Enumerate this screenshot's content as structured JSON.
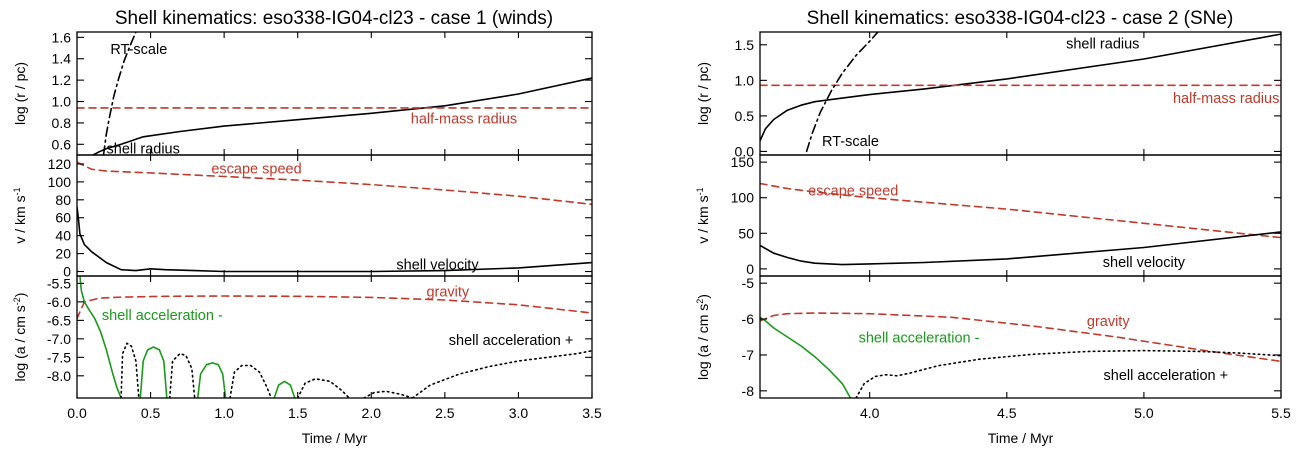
{
  "figure": {
    "colors": {
      "axes": "#000000",
      "shell": "#000000",
      "reference": "#c0392b",
      "negative_acc": "#1a9a1a"
    }
  },
  "chart_data": [
    {
      "type": "line",
      "title": "Shell kinematics: eso338-IG04-cl23 - case 1 (winds)",
      "xlabel": "Time / Myr",
      "xlim": [
        0.0,
        3.5
      ],
      "xticks": [
        0.0,
        0.5,
        1.0,
        1.5,
        2.0,
        2.5,
        3.0,
        3.5
      ],
      "xtick_labels": [
        "0.0",
        "0.5",
        "1.0",
        "1.5",
        "2.0",
        "2.5",
        "3.0",
        "3.5"
      ],
      "panels": [
        {
          "ylabel": "log (r / pc)",
          "ylim": [
            0.5,
            1.65
          ],
          "yticks": [
            0.6,
            0.8,
            1.0,
            1.2,
            1.4,
            1.6
          ],
          "ytick_labels": [
            "0.6",
            "0.8",
            "1.0",
            "1.2",
            "1.4",
            "1.6"
          ],
          "series": [
            {
              "style": "solid",
              "color": "#000000",
              "x": [
                0.11,
                0.15,
                0.2,
                0.3,
                0.45,
                0.7,
                1.0,
                1.5,
                2.0,
                2.5,
                3.0,
                3.5
              ],
              "y": [
                0.5,
                0.53,
                0.56,
                0.6,
                0.67,
                0.72,
                0.77,
                0.83,
                0.89,
                0.96,
                1.07,
                1.22
              ]
            },
            {
              "style": "dashed",
              "color": "#c0392b",
              "x": [
                0.0,
                3.5
              ],
              "y": [
                0.94,
                0.94
              ]
            },
            {
              "style": "dashdot",
              "color": "#000000",
              "x": [
                0.18,
                0.2,
                0.22,
                0.25,
                0.28,
                0.32,
                0.36,
                0.4
              ],
              "y": [
                0.5,
                0.7,
                0.85,
                1.05,
                1.2,
                1.38,
                1.52,
                1.65
              ]
            }
          ],
          "annotations": [
            {
              "text": "RT-scale",
              "x": 0.42,
              "y": 1.49,
              "color": "#000000"
            },
            {
              "text": "half-mass radius",
              "x": 2.63,
              "y": 0.84,
              "color": "#c0392b"
            },
            {
              "text": "shell radius",
              "x": 0.45,
              "y": 0.56,
              "color": "#000000"
            }
          ]
        },
        {
          "ylabel": "v / km s-1",
          "ylim": [
            -5,
            130
          ],
          "yticks": [
            0,
            20,
            40,
            60,
            80,
            100,
            120
          ],
          "ytick_labels": [
            "0",
            "20",
            "40",
            "60",
            "80",
            "100",
            "120"
          ],
          "series": [
            {
              "style": "dashed",
              "color": "#c0392b",
              "x": [
                0.0,
                0.05,
                0.1,
                0.2,
                0.5,
                1.0,
                1.5,
                2.0,
                2.5,
                3.0,
                3.5
              ],
              "y": [
                122,
                118,
                114,
                112,
                110,
                106,
                102,
                97,
                91,
                84,
                75
              ]
            },
            {
              "style": "solid",
              "color": "#000000",
              "x": [
                0.0,
                0.01,
                0.02,
                0.05,
                0.1,
                0.2,
                0.3,
                0.4,
                0.5,
                0.6,
                0.8,
                1.0,
                1.5,
                2.0,
                2.5,
                3.0,
                3.5
              ],
              "y": [
                72,
                58,
                42,
                30,
                22,
                10,
                2,
                1,
                3,
                2,
                1,
                0,
                0,
                0,
                1,
                4,
                10
              ]
            }
          ],
          "annotations": [
            {
              "text": "escape speed",
              "x": 1.22,
              "y": 115,
              "color": "#c0392b"
            },
            {
              "text": "shell velocity",
              "x": 2.45,
              "y": 8,
              "color": "#000000"
            }
          ]
        },
        {
          "ylabel": "log (a / cm s-2)",
          "ylim": [
            -8.6,
            -5.3
          ],
          "yticks": [
            -5.5,
            -6.0,
            -6.5,
            -7.0,
            -7.5,
            -8.0
          ],
          "ytick_labels": [
            "-5.5",
            "-6.0",
            "-6.5",
            "-7.0",
            "-7.5",
            "-8.0"
          ],
          "series": [
            {
              "style": "dashed",
              "color": "#c0392b",
              "x": [
                0.0,
                0.05,
                0.15,
                0.3,
                0.6,
                1.0,
                1.5,
                2.0,
                2.5,
                3.0,
                3.5
              ],
              "y": [
                -6.45,
                -6.0,
                -5.9,
                -5.87,
                -5.85,
                -5.84,
                -5.85,
                -5.88,
                -5.95,
                -6.08,
                -6.3
              ]
            },
            {
              "style": "solid",
              "color": "#1a9a1a",
              "x": [
                0.02,
                0.03,
                0.05,
                0.08,
                0.12,
                0.16,
                0.2,
                0.24,
                0.27,
                0.3
              ],
              "y": [
                -5.3,
                -5.7,
                -6.0,
                -6.2,
                -6.45,
                -6.8,
                -7.3,
                -7.9,
                -8.3,
                -8.6
              ]
            },
            {
              "style": "solid",
              "color": "#1a9a1a",
              "x": [
                0.43,
                0.45,
                0.48,
                0.52,
                0.56,
                0.59,
                0.61
              ],
              "y": [
                -8.6,
                -7.6,
                -7.3,
                -7.22,
                -7.3,
                -7.6,
                -8.6
              ]
            },
            {
              "style": "solid",
              "color": "#1a9a1a",
              "x": [
                0.82,
                0.84,
                0.88,
                0.92,
                0.96,
                0.99,
                1.01
              ],
              "y": [
                -8.6,
                -7.95,
                -7.7,
                -7.65,
                -7.7,
                -7.95,
                -8.6
              ]
            },
            {
              "style": "solid",
              "color": "#1a9a1a",
              "x": [
                1.34,
                1.37,
                1.41,
                1.45,
                1.48
              ],
              "y": [
                -8.6,
                -8.25,
                -8.15,
                -8.25,
                -8.6
              ]
            },
            {
              "style": "dotted",
              "color": "#000000",
              "x": [
                0.3,
                0.31,
                0.34,
                0.37,
                0.4,
                0.42
              ],
              "y": [
                -8.6,
                -7.4,
                -7.12,
                -7.2,
                -7.6,
                -8.6
              ]
            },
            {
              "style": "dotted",
              "color": "#000000",
              "x": [
                0.63,
                0.65,
                0.7,
                0.74,
                0.78,
                0.8
              ],
              "y": [
                -8.6,
                -7.6,
                -7.4,
                -7.45,
                -7.8,
                -8.6
              ]
            },
            {
              "style": "dotted",
              "color": "#000000",
              "x": [
                1.04,
                1.07,
                1.12,
                1.18,
                1.24,
                1.29,
                1.32
              ],
              "y": [
                -8.6,
                -7.9,
                -7.72,
                -7.72,
                -7.9,
                -8.3,
                -8.6
              ]
            },
            {
              "style": "dotted",
              "color": "#000000",
              "x": [
                1.5,
                1.55,
                1.62,
                1.72,
                1.8,
                1.85
              ],
              "y": [
                -8.6,
                -8.2,
                -8.08,
                -8.15,
                -8.4,
                -8.6
              ]
            },
            {
              "style": "dotted",
              "color": "#000000",
              "x": [
                1.95,
                2.02,
                2.1,
                2.2,
                2.28
              ],
              "y": [
                -8.6,
                -8.45,
                -8.42,
                -8.5,
                -8.6
              ]
            },
            {
              "style": "dotted",
              "color": "#000000",
              "x": [
                2.28,
                2.4,
                2.6,
                2.8,
                3.0,
                3.2,
                3.4,
                3.5
              ],
              "y": [
                -8.6,
                -8.25,
                -7.95,
                -7.75,
                -7.6,
                -7.5,
                -7.4,
                -7.32
              ]
            }
          ],
          "annotations": [
            {
              "text": "gravity",
              "x": 2.52,
              "y": -5.72,
              "color": "#c0392b"
            },
            {
              "text": "shell acceleration -",
              "x": 0.58,
              "y": -6.36,
              "color": "#1a9a1a"
            },
            {
              "text": "shell acceleration +",
              "x": 2.95,
              "y": -7.03,
              "color": "#000000"
            }
          ]
        }
      ]
    },
    {
      "type": "line",
      "title": "Shell kinematics: eso338-IG04-cl23 - case 2 (SNe)",
      "xlabel": "Time / Myr",
      "xlim": [
        3.6,
        5.5
      ],
      "xticks": [
        4.0,
        4.5,
        5.0,
        5.5
      ],
      "xtick_labels": [
        "4.0",
        "4.5",
        "5.0",
        "5.5"
      ],
      "panels": [
        {
          "ylabel": "log (r / pc)",
          "ylim": [
            -0.05,
            1.68
          ],
          "yticks": [
            0.0,
            0.5,
            1.0,
            1.5
          ],
          "ytick_labels": [
            "0.0",
            "0.5",
            "1.0",
            "1.5"
          ],
          "series": [
            {
              "style": "solid",
              "color": "#000000",
              "x": [
                3.6,
                3.62,
                3.65,
                3.7,
                3.75,
                3.8,
                3.9,
                4.0,
                4.2,
                4.5,
                5.0,
                5.5
              ],
              "y": [
                0.15,
                0.32,
                0.45,
                0.58,
                0.65,
                0.7,
                0.75,
                0.8,
                0.88,
                1.02,
                1.3,
                1.65
              ]
            },
            {
              "style": "dashed",
              "color": "#c0392b",
              "x": [
                3.6,
                5.5
              ],
              "y": [
                0.93,
                0.93
              ]
            },
            {
              "style": "dashdot",
              "color": "#000000",
              "x": [
                3.77,
                3.79,
                3.82,
                3.86,
                3.9,
                3.95,
                4.0,
                4.03
              ],
              "y": [
                0.0,
                0.25,
                0.55,
                0.85,
                1.1,
                1.35,
                1.55,
                1.68
              ]
            }
          ],
          "annotations": [
            {
              "text": "shell radius",
              "x": 4.85,
              "y": 1.52,
              "color": "#000000"
            },
            {
              "text": "half-mass radius",
              "x": 5.3,
              "y": 0.75,
              "color": "#c0392b"
            },
            {
              "text": "RT-scale",
              "x": 3.93,
              "y": 0.15,
              "color": "#000000"
            }
          ]
        },
        {
          "ylabel": "v / km s-1",
          "ylim": [
            -10,
            160
          ],
          "yticks": [
            0,
            50,
            100,
            150
          ],
          "ytick_labels": [
            "0",
            "50",
            "100",
            "150"
          ],
          "series": [
            {
              "style": "dashed",
              "color": "#c0392b",
              "x": [
                3.6,
                3.7,
                3.8,
                4.0,
                4.5,
                5.0,
                5.5
              ],
              "y": [
                120,
                113,
                108,
                100,
                84,
                64,
                44
              ]
            },
            {
              "style": "solid",
              "color": "#000000",
              "x": [
                3.6,
                3.65,
                3.7,
                3.75,
                3.8,
                3.9,
                4.0,
                4.2,
                4.5,
                5.0,
                5.5
              ],
              "y": [
                33,
                22,
                16,
                11,
                8,
                6,
                7,
                9,
                14,
                30,
                52
              ]
            }
          ],
          "annotations": [
            {
              "text": "escape speed",
              "x": 3.94,
              "y": 110,
              "color": "#c0392b"
            },
            {
              "text": "shell velocity",
              "x": 5.0,
              "y": 10,
              "color": "#000000"
            }
          ]
        },
        {
          "ylabel": "log (a / cm s2)",
          "ylim": [
            -8.2,
            -4.8
          ],
          "yticks": [
            -5,
            -6,
            -7,
            -8
          ],
          "ytick_labels": [
            "-5",
            "-6",
            "-7",
            "-8"
          ],
          "series": [
            {
              "style": "dashed",
              "color": "#c0392b",
              "x": [
                3.6,
                3.65,
                3.7,
                3.8,
                4.0,
                4.3,
                4.6,
                4.9,
                5.2,
                5.5
              ],
              "y": [
                -6.05,
                -5.9,
                -5.85,
                -5.83,
                -5.85,
                -5.95,
                -6.2,
                -6.5,
                -6.85,
                -7.18
              ]
            },
            {
              "style": "solid",
              "color": "#1a9a1a",
              "x": [
                3.6,
                3.62,
                3.65,
                3.7,
                3.75,
                3.8,
                3.85,
                3.9,
                3.93
              ],
              "y": [
                -5.95,
                -6.05,
                -6.25,
                -6.5,
                -6.75,
                -7.05,
                -7.4,
                -7.8,
                -8.2
              ]
            },
            {
              "style": "dotted",
              "color": "#000000",
              "x": [
                3.95,
                3.98,
                4.02,
                4.06,
                4.1,
                4.15,
                4.25,
                4.4,
                4.6,
                4.8,
                5.0,
                5.2,
                5.35,
                5.5
              ],
              "y": [
                -8.2,
                -7.8,
                -7.6,
                -7.55,
                -7.58,
                -7.5,
                -7.3,
                -7.12,
                -6.98,
                -6.9,
                -6.88,
                -6.9,
                -6.95,
                -7.02
              ]
            }
          ],
          "annotations": [
            {
              "text": "gravity",
              "x": 4.87,
              "y": -6.05,
              "color": "#c0392b"
            },
            {
              "text": "shell acceleration -",
              "x": 4.18,
              "y": -6.52,
              "color": "#1a9a1a"
            },
            {
              "text": "shell acceleration +",
              "x": 5.08,
              "y": -7.56,
              "color": "#000000"
            }
          ]
        }
      ]
    }
  ]
}
